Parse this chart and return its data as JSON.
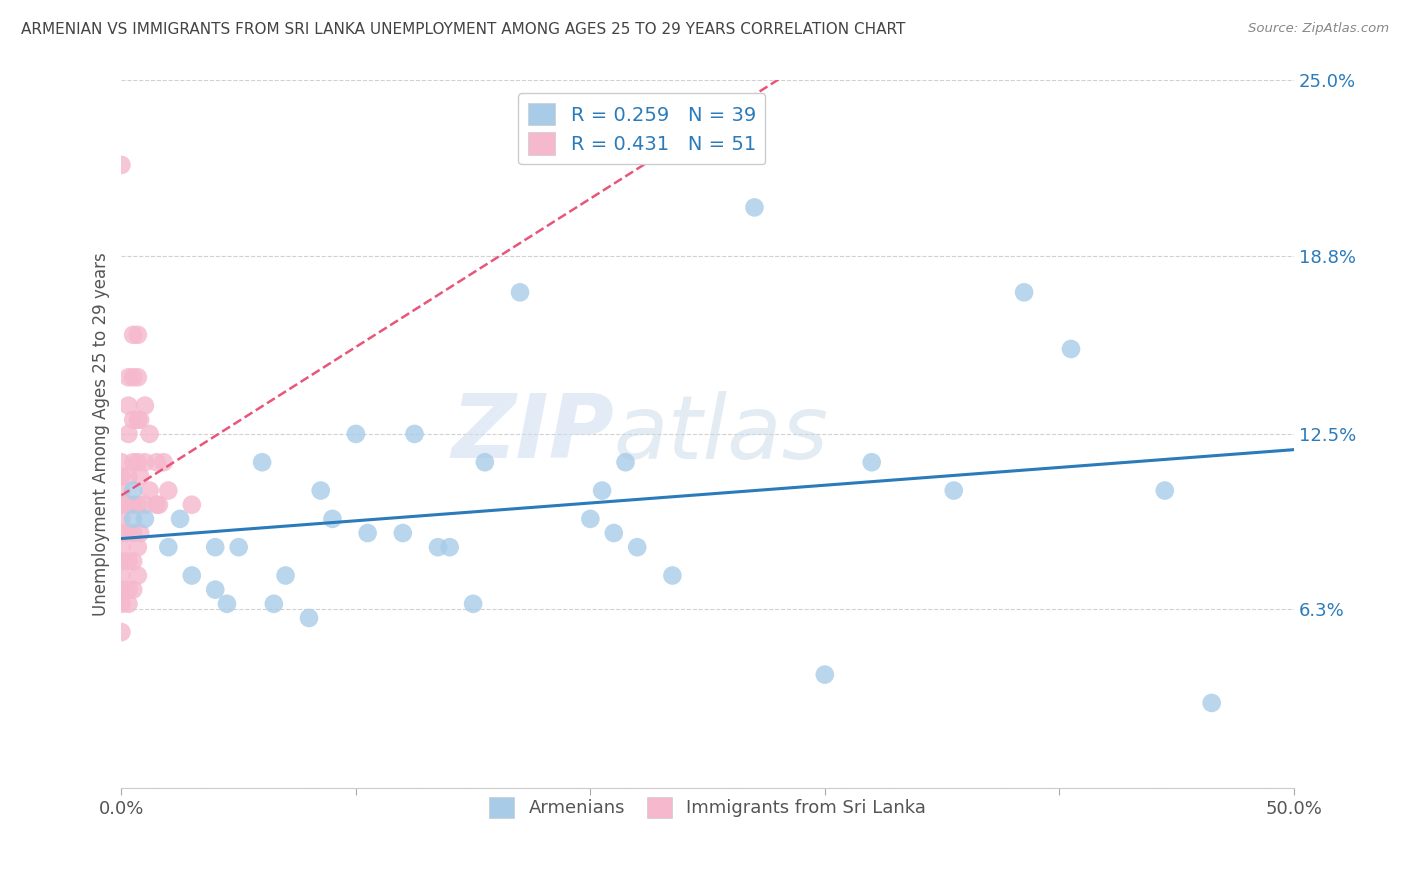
{
  "title": "ARMENIAN VS IMMIGRANTS FROM SRI LANKA UNEMPLOYMENT AMONG AGES 25 TO 29 YEARS CORRELATION CHART",
  "source": "Source: ZipAtlas.com",
  "ylabel": "Unemployment Among Ages 25 to 29 years",
  "xlim": [
    0.0,
    0.5
  ],
  "ylim": [
    0.0,
    0.25
  ],
  "ytick_values": [
    0.0,
    0.063,
    0.125,
    0.188,
    0.25
  ],
  "ytick_labels": [
    "",
    "6.3%",
    "12.5%",
    "18.8%",
    "25.0%"
  ],
  "xtick_values": [
    0.0,
    0.1,
    0.2,
    0.3,
    0.4,
    0.5
  ],
  "xtick_labels": [
    "0.0%",
    "",
    "",
    "",
    "",
    "50.0%"
  ],
  "legend_r_armenians": "R = 0.259",
  "legend_n_armenians": "N = 39",
  "legend_r_srilanka": "R = 0.431",
  "legend_n_srilanka": "N = 51",
  "color_armenians": "#a8cce8",
  "color_srilanka": "#f5b8cc",
  "color_trendline_armenians": "#2b7bba",
  "color_trendline_srilanka": "#e8567a",
  "watermark_zip": "ZIP",
  "watermark_atlas": "atlas",
  "armenians_x": [
    0.005,
    0.005,
    0.01,
    0.02,
    0.025,
    0.03,
    0.04,
    0.04,
    0.045,
    0.05,
    0.06,
    0.065,
    0.07,
    0.08,
    0.085,
    0.09,
    0.1,
    0.105,
    0.12,
    0.125,
    0.135,
    0.14,
    0.15,
    0.155,
    0.17,
    0.2,
    0.205,
    0.21,
    0.215,
    0.22,
    0.235,
    0.27,
    0.3,
    0.32,
    0.355,
    0.385,
    0.405,
    0.445,
    0.465
  ],
  "armenians_y": [
    0.095,
    0.105,
    0.095,
    0.085,
    0.095,
    0.075,
    0.07,
    0.085,
    0.065,
    0.085,
    0.115,
    0.065,
    0.075,
    0.06,
    0.105,
    0.095,
    0.125,
    0.09,
    0.09,
    0.125,
    0.085,
    0.085,
    0.065,
    0.115,
    0.175,
    0.095,
    0.105,
    0.09,
    0.115,
    0.085,
    0.075,
    0.205,
    0.04,
    0.115,
    0.105,
    0.175,
    0.155,
    0.105,
    0.03
  ],
  "srilanka_x": [
    0.0,
    0.0,
    0.0,
    0.0,
    0.0,
    0.0,
    0.0,
    0.0,
    0.0,
    0.0,
    0.0,
    0.0,
    0.0,
    0.003,
    0.003,
    0.003,
    0.003,
    0.003,
    0.003,
    0.003,
    0.003,
    0.003,
    0.005,
    0.005,
    0.005,
    0.005,
    0.005,
    0.005,
    0.005,
    0.005,
    0.007,
    0.007,
    0.007,
    0.007,
    0.007,
    0.007,
    0.007,
    0.008,
    0.008,
    0.008,
    0.01,
    0.01,
    0.01,
    0.012,
    0.012,
    0.015,
    0.015,
    0.016,
    0.018,
    0.02,
    0.03
  ],
  "srilanka_y": [
    0.055,
    0.065,
    0.07,
    0.075,
    0.08,
    0.085,
    0.09,
    0.095,
    0.1,
    0.105,
    0.11,
    0.115,
    0.22,
    0.065,
    0.07,
    0.08,
    0.09,
    0.1,
    0.11,
    0.125,
    0.135,
    0.145,
    0.07,
    0.08,
    0.09,
    0.1,
    0.115,
    0.13,
    0.145,
    0.16,
    0.075,
    0.085,
    0.1,
    0.115,
    0.13,
    0.145,
    0.16,
    0.09,
    0.11,
    0.13,
    0.1,
    0.115,
    0.135,
    0.105,
    0.125,
    0.1,
    0.115,
    0.1,
    0.115,
    0.105,
    0.1
  ]
}
